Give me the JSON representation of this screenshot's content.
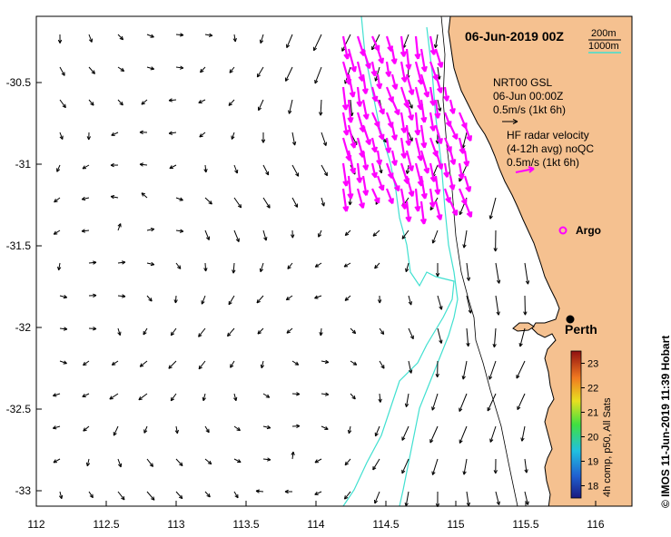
{
  "title": "06-Jun-2019 00Z",
  "depth_legend": {
    "shallow": "200m",
    "deep": "1000m",
    "deep_color": "#40e0d0"
  },
  "model_info": {
    "line1": "NRT00 GSL",
    "line2": "06-Jun 00:00Z",
    "line3": "0.5m/s (1kt 6h)"
  },
  "radar_info": {
    "line1": "HF radar velocity",
    "line2": "(4-12h avg) noQC",
    "line3": "0.5m/s (1kt 6h)"
  },
  "argo": {
    "label": "Argo",
    "lon": 115.8,
    "lat": -31.4
  },
  "city": {
    "label": "Perth",
    "lon": 115.86,
    "lat": -31.95
  },
  "colorbar": {
    "ticks": [
      "23",
      "22",
      "21",
      "20",
      "19",
      "18"
    ],
    "label": "4h comp, p50, All Sats",
    "min": 17.5,
    "max": 23.5
  },
  "credit": "© IMOS 11-Jun-2019 11:39 Hobart",
  "axes": {
    "x_ticks": [
      "112",
      "112.5",
      "113",
      "113.5",
      "114",
      "114.5",
      "115",
      "115.5",
      "116"
    ],
    "y_ticks": [
      "-30.5",
      "-31",
      "-31.5",
      "-32",
      "-32.5",
      "-33"
    ],
    "lon_range": [
      112,
      116.3
    ],
    "lat_range": [
      -33.1,
      -30.1
    ]
  },
  "colors": {
    "land": "#f5c190",
    "radar_arrows": "#ff00ff",
    "coast_line": "#000000",
    "isobath": "#40e0d0"
  }
}
